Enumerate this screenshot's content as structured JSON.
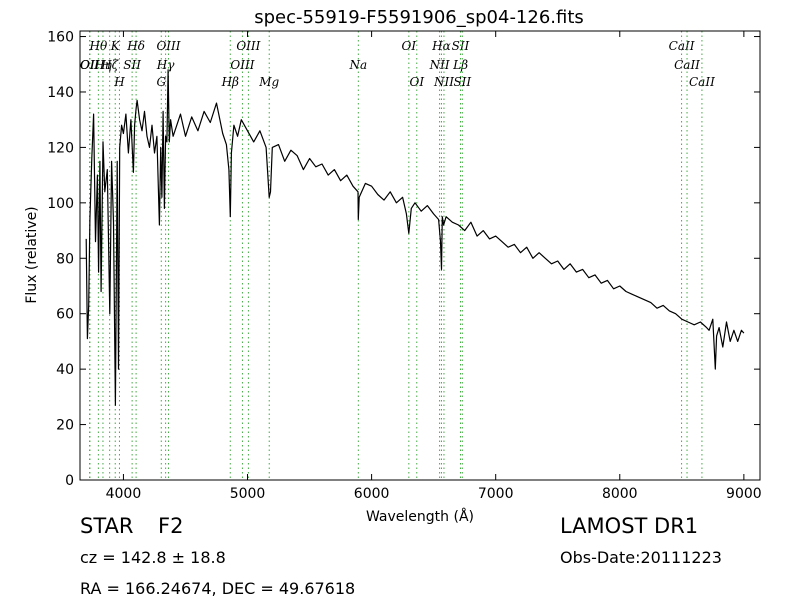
{
  "chart_data": {
    "type": "line",
    "title": "spec-55919-F5591906_sp04-126.fits",
    "xlabel": "Wavelength (Å)",
    "ylabel": "Flux (relative)",
    "xlim": [
      3650,
      9130
    ],
    "ylim": [
      0,
      162
    ],
    "xticks": [
      4000,
      5000,
      6000,
      7000,
      8000,
      9000
    ],
    "xtick_labels": [
      "4000",
      "5000",
      "6000",
      "7000",
      "8000",
      "9000"
    ],
    "yticks": [
      0,
      20,
      40,
      60,
      80,
      100,
      120,
      140,
      160
    ],
    "ytick_labels": [
      "0",
      "20",
      "40",
      "60",
      "80",
      "100",
      "120",
      "140",
      "160"
    ],
    "grid": false,
    "line_color": "#000000",
    "marker_color": "#44aa44",
    "series": [
      {
        "x": [
          3700,
          3710,
          3720,
          3730,
          3745,
          3760,
          3775,
          3790,
          3800,
          3810,
          3820,
          3835,
          3850,
          3870,
          3890,
          3905,
          3920,
          3935,
          3950,
          3960,
          3970,
          3985,
          4000,
          4020,
          4040,
          4060,
          4080,
          4090,
          4102,
          4110,
          4130,
          4150,
          4170,
          4190,
          4210,
          4230,
          4250,
          4270,
          4290,
          4300,
          4310,
          4320,
          4330,
          4340,
          4350,
          4360,
          4370,
          4380,
          4400,
          4430,
          4460,
          4500,
          4550,
          4600,
          4650,
          4700,
          4750,
          4800,
          4830,
          4850,
          4861,
          4870,
          4890,
          4920,
          4950,
          5000,
          5050,
          5100,
          5150,
          5175,
          5185,
          5200,
          5250,
          5300,
          5350,
          5400,
          5450,
          5500,
          5550,
          5600,
          5650,
          5700,
          5750,
          5800,
          5850,
          5890,
          5893,
          5900,
          5950,
          6000,
          6050,
          6100,
          6150,
          6200,
          6250,
          6280,
          6300,
          6320,
          6350,
          6400,
          6450,
          6500,
          6540,
          6555,
          6563,
          6570,
          6580,
          6600,
          6650,
          6700,
          6750,
          6800,
          6850,
          6900,
          6950,
          7000,
          7050,
          7100,
          7150,
          7200,
          7250,
          7300,
          7350,
          7400,
          7450,
          7500,
          7550,
          7600,
          7650,
          7700,
          7750,
          7800,
          7850,
          7900,
          7950,
          8000,
          8050,
          8100,
          8150,
          8200,
          8250,
          8300,
          8350,
          8400,
          8450,
          8500,
          8550,
          8600,
          8650,
          8700,
          8720,
          8750,
          8770,
          8780,
          8800,
          8830,
          8860,
          8890,
          8920,
          8950,
          8980,
          9000
        ],
        "y": [
          87,
          51,
          63,
          94,
          116,
          132,
          86,
          110,
          75,
          115,
          68,
          122,
          104,
          112,
          60,
          115,
          93,
          27,
          115,
          40,
          120,
          128,
          125,
          132,
          118,
          130,
          111,
          128,
          134,
          137,
          130,
          126,
          133,
          124,
          120,
          128,
          118,
          124,
          92,
          120,
          102,
          133,
          98,
          124,
          122,
          148,
          122,
          130,
          124,
          128,
          132,
          124,
          131,
          126,
          133,
          129,
          136,
          125,
          121,
          112,
          95,
          118,
          128,
          124,
          130,
          126,
          122,
          126,
          120,
          102,
          104,
          120,
          121,
          115,
          119,
          117,
          112,
          116,
          113,
          114,
          110,
          112,
          108,
          110,
          106,
          104,
          94,
          102,
          107,
          106,
          103,
          101,
          104,
          100,
          102,
          96,
          89,
          98,
          100,
          97,
          99,
          96,
          94,
          86,
          76,
          95,
          92,
          95,
          93,
          92,
          90,
          93,
          88,
          90,
          87,
          88,
          86,
          84,
          85,
          82,
          84,
          80,
          82,
          80,
          78,
          79,
          76,
          78,
          75,
          76,
          73,
          74,
          71,
          72,
          69,
          70,
          68,
          67,
          66,
          65,
          64,
          62,
          63,
          61,
          60,
          58,
          57,
          56,
          57,
          55,
          54,
          58,
          40,
          52,
          55,
          48,
          57,
          50,
          54,
          50,
          54,
          53
        ]
      }
    ],
    "line_markers": [
      {
        "x": 3727,
        "label": "OII",
        "row": 1
      },
      {
        "x": 3730,
        "label": "OII",
        "row": 2
      },
      {
        "x": 3798,
        "label": "Hθ",
        "row": 0
      },
      {
        "x": 3835,
        "label": "Hη",
        "row": 2
      },
      {
        "x": 3889,
        "label": "Hζ",
        "row": 1
      },
      {
        "x": 3934,
        "label": "K",
        "row": 0
      },
      {
        "x": 3968,
        "label": "H",
        "row": 3
      },
      {
        "x": 4070,
        "label": "SII",
        "row": 1
      },
      {
        "x": 4102,
        "label": "Hδ",
        "row": 0
      },
      {
        "x": 4305,
        "label": "G",
        "row": 3
      },
      {
        "x": 4340,
        "label": "Hγ",
        "row": 1
      },
      {
        "x": 4363,
        "label": "OIII",
        "row": 0
      },
      {
        "x": 4861,
        "label": "Hβ",
        "row": 3
      },
      {
        "x": 4959,
        "label": "OIII",
        "row": 2
      },
      {
        "x": 5007,
        "label": "OIII",
        "row": 0
      },
      {
        "x": 5175,
        "label": "Mg",
        "row": 3
      },
      {
        "x": 5893,
        "label": "Na",
        "row": 2
      },
      {
        "x": 6300,
        "label": "OI",
        "row": 0
      },
      {
        "x": 6364,
        "label": "OI",
        "row": 3
      },
      {
        "x": 6548,
        "label": "NII",
        "row": 2
      },
      {
        "x": 6563,
        "label": "Hα",
        "row": 0
      },
      {
        "x": 6583,
        "label": "NII",
        "row": 3
      },
      {
        "x": 6716,
        "label": "SII",
        "row": 0
      },
      {
        "x": 6717,
        "label": "Lβ",
        "row": 2
      },
      {
        "x": 6731,
        "label": "SII",
        "row": 3
      },
      {
        "x": 8498,
        "label": "CaII",
        "row": 0
      },
      {
        "x": 8542,
        "label": "CaII",
        "row": 2
      },
      {
        "x": 8662,
        "label": "CaII",
        "row": 3
      }
    ]
  },
  "footer": {
    "object_class": "STAR",
    "subclass": "F2",
    "survey": "LAMOST DR1",
    "redshift": "cz = 142.8 ± 18.8",
    "obs_date": "Obs-Date:20111223",
    "coords": "RA = 166.24674, DEC = 49.67618"
  }
}
